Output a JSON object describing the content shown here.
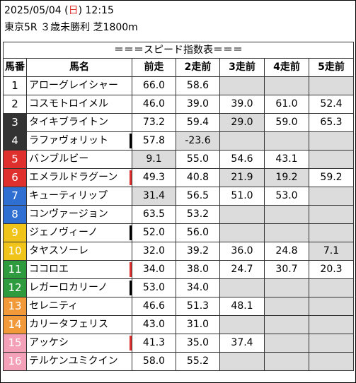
{
  "header": {
    "date_prefix": "2025/05/04 (",
    "weekday": "日",
    "date_suffix": ") 12:15",
    "race": "東京5R ３歳未勝利 芝1800m"
  },
  "table": {
    "title": "＝＝＝スピード指数表＝＝＝",
    "columns": [
      "馬番",
      "馬名",
      "前走",
      "2走前",
      "3走前",
      "4走前",
      "5走前"
    ],
    "colors": {
      "grey_cell": "#dcdcdc",
      "red_mark": "#e0302e",
      "black_mark": "#000000"
    },
    "rows": [
      {
        "num": "1",
        "bg": "#ffffff",
        "fg": "#000000",
        "name": "アローグレイシャー",
        "mark": "",
        "vals": [
          "66.0",
          "58.6",
          "",
          "",
          ""
        ],
        "grey": [
          false,
          false,
          true,
          true,
          true
        ]
      },
      {
        "num": "2",
        "bg": "#ffffff",
        "fg": "#000000",
        "name": "コスモトロイメル",
        "mark": "",
        "vals": [
          "46.0",
          "39.0",
          "39.0",
          "61.0",
          "52.4"
        ],
        "grey": [
          false,
          false,
          false,
          false,
          false
        ]
      },
      {
        "num": "3",
        "bg": "#333333",
        "fg": "#ffffff",
        "name": "タイキブライトン",
        "mark": "",
        "vals": [
          "73.2",
          "59.4",
          "29.0",
          "59.0",
          "65.3"
        ],
        "grey": [
          false,
          false,
          true,
          false,
          false
        ]
      },
      {
        "num": "4",
        "bg": "#333333",
        "fg": "#ffffff",
        "name": "ラファヴォリット",
        "mark": "#000000",
        "vals": [
          "57.8",
          "-23.6",
          "",
          "",
          ""
        ],
        "grey": [
          false,
          true,
          true,
          true,
          true
        ]
      },
      {
        "num": "5",
        "bg": "#e0302e",
        "fg": "#ffffff",
        "name": "バンブルビー",
        "mark": "",
        "vals": [
          "9.1",
          "55.0",
          "54.6",
          "43.1",
          ""
        ],
        "grey": [
          true,
          false,
          false,
          false,
          true
        ]
      },
      {
        "num": "6",
        "bg": "#e0302e",
        "fg": "#ffffff",
        "name": "エメラルドラグーン",
        "mark": "#e0302e",
        "vals": [
          "49.3",
          "40.8",
          "21.9",
          "19.2",
          "59.2"
        ],
        "grey": [
          false,
          false,
          true,
          true,
          false
        ]
      },
      {
        "num": "7",
        "bg": "#2e6fd1",
        "fg": "#ffffff",
        "name": "キューティリップ",
        "mark": "",
        "vals": [
          "31.4",
          "56.5",
          "51.0",
          "53.0",
          ""
        ],
        "grey": [
          true,
          false,
          false,
          false,
          true
        ]
      },
      {
        "num": "8",
        "bg": "#2e6fd1",
        "fg": "#ffffff",
        "name": "コンヴァージョン",
        "mark": "",
        "vals": [
          "63.5",
          "53.2",
          "",
          "",
          ""
        ],
        "grey": [
          false,
          false,
          true,
          true,
          true
        ]
      },
      {
        "num": "9",
        "bg": "#f0c419",
        "fg": "#ffffff",
        "name": "ジェノヴィーノ",
        "mark": "#000000",
        "vals": [
          "52.0",
          "56.0",
          "",
          "",
          ""
        ],
        "grey": [
          false,
          false,
          true,
          true,
          true
        ]
      },
      {
        "num": "10",
        "bg": "#f0c419",
        "fg": "#ffffff",
        "name": "タヤスソーレ",
        "mark": "",
        "vals": [
          "32.0",
          "39.2",
          "36.0",
          "24.8",
          "7.1"
        ],
        "grey": [
          false,
          false,
          false,
          false,
          true
        ]
      },
      {
        "num": "11",
        "bg": "#2e9c3e",
        "fg": "#ffffff",
        "name": "ココロエ",
        "mark": "#e0302e",
        "vals": [
          "34.0",
          "38.0",
          "24.7",
          "30.7",
          "20.3"
        ],
        "grey": [
          false,
          false,
          false,
          false,
          false
        ]
      },
      {
        "num": "12",
        "bg": "#2e9c3e",
        "fg": "#ffffff",
        "name": "レガーロカリーノ",
        "mark": "#000000",
        "vals": [
          "53.0",
          "34.0",
          "",
          "",
          ""
        ],
        "grey": [
          false,
          false,
          true,
          true,
          true
        ]
      },
      {
        "num": "13",
        "bg": "#f29a3a",
        "fg": "#ffffff",
        "name": "セレニティ",
        "mark": "",
        "vals": [
          "46.6",
          "51.3",
          "48.1",
          "",
          ""
        ],
        "grey": [
          false,
          false,
          false,
          true,
          true
        ]
      },
      {
        "num": "14",
        "bg": "#f29a3a",
        "fg": "#ffffff",
        "name": "カリータフェリス",
        "mark": "",
        "vals": [
          "43.0",
          "31.0",
          "",
          "",
          ""
        ],
        "grey": [
          false,
          false,
          true,
          true,
          true
        ]
      },
      {
        "num": "15",
        "bg": "#f4a0b8",
        "fg": "#ffffff",
        "name": "アッケシ",
        "mark": "#e0302e",
        "vals": [
          "41.3",
          "35.0",
          "37.4",
          "",
          ""
        ],
        "grey": [
          false,
          false,
          false,
          true,
          true
        ]
      },
      {
        "num": "16",
        "bg": "#f4a0b8",
        "fg": "#ffffff",
        "name": "テルケンユミクイン",
        "mark": "",
        "vals": [
          "58.0",
          "55.2",
          "",
          "",
          ""
        ],
        "grey": [
          false,
          false,
          true,
          true,
          true
        ]
      }
    ]
  }
}
